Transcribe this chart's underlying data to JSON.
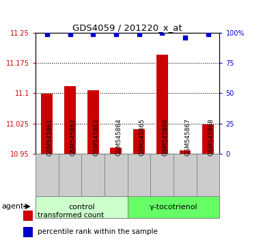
{
  "title": "GDS4059 / 201220_x_at",
  "samples": [
    "GSM545861",
    "GSM545862",
    "GSM545863",
    "GSM545864",
    "GSM545865",
    "GSM545866",
    "GSM545867",
    "GSM545868"
  ],
  "red_values": [
    11.098,
    11.118,
    11.108,
    10.965,
    11.01,
    11.195,
    10.958,
    11.022
  ],
  "blue_values": [
    99,
    99,
    99,
    99,
    99,
    100,
    96,
    99
  ],
  "ylim_left": [
    10.95,
    11.25
  ],
  "ylim_right": [
    0,
    100
  ],
  "yticks_left": [
    10.95,
    11.025,
    11.1,
    11.175,
    11.25
  ],
  "yticks_right": [
    0,
    25,
    50,
    75,
    100
  ],
  "ytick_labels_left": [
    "10.95",
    "11.025",
    "11.1",
    "11.175",
    "11.25"
  ],
  "ytick_labels_right": [
    "0",
    "25",
    "50",
    "75",
    "100%"
  ],
  "groups": [
    {
      "label": "control",
      "indices": [
        0,
        1,
        2,
        3
      ],
      "color": "#ccffcc"
    },
    {
      "label": "γ-tocotrienol",
      "indices": [
        4,
        5,
        6,
        7
      ],
      "color": "#66ff66"
    }
  ],
  "bar_color": "#cc0000",
  "dot_color": "#0000cc",
  "bar_width": 0.5,
  "agent_label": "agent",
  "legend_red": "transformed count",
  "legend_blue": "percentile rank within the sample",
  "xlabel_gray": "#cccccc",
  "xlabel_gray_border": "#888888",
  "group_border": "#888888"
}
